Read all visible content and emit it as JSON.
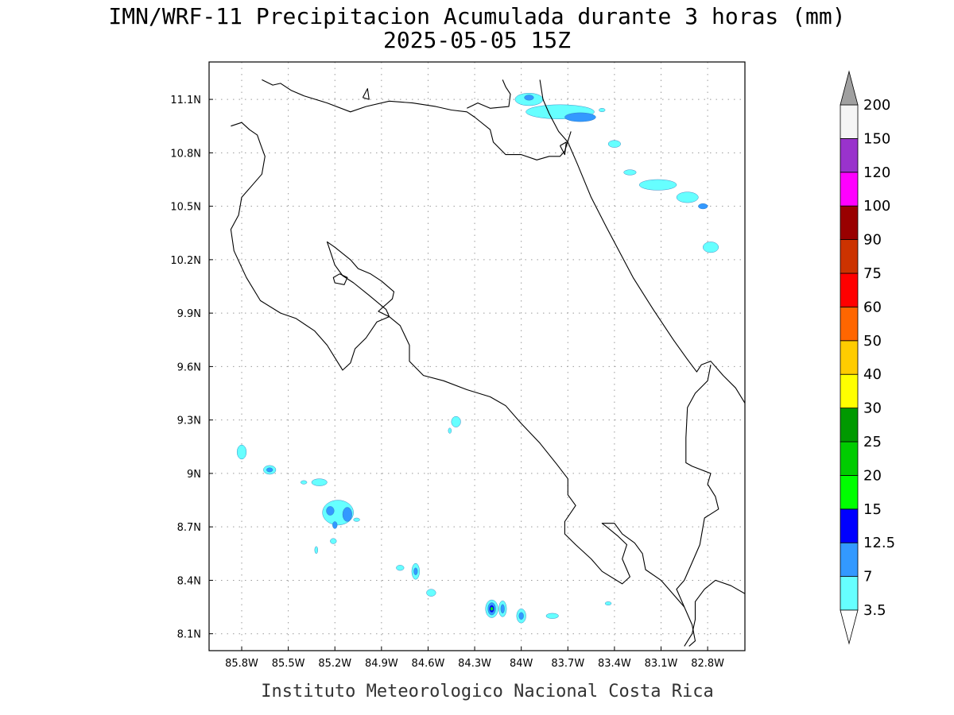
{
  "title_line1": "IMN/WRF-11 Precipitacion Acumulada durante 3 horas (mm)",
  "title_line2": "2025-05-05 15Z",
  "footer": "Instituto Meteorologico Nacional Costa Rica",
  "lon_ticks": [
    {
      "value": -85.8,
      "label": "85.8W"
    },
    {
      "value": -85.5,
      "label": "85.5W"
    },
    {
      "value": -85.2,
      "label": "85.2W"
    },
    {
      "value": -84.9,
      "label": "84.9W"
    },
    {
      "value": -84.6,
      "label": "84.6W"
    },
    {
      "value": -84.3,
      "label": "84.3W"
    },
    {
      "value": -84.0,
      "label": "84W"
    },
    {
      "value": -83.7,
      "label": "83.7W"
    },
    {
      "value": -83.4,
      "label": "83.4W"
    },
    {
      "value": -83.1,
      "label": "83.1W"
    },
    {
      "value": -82.8,
      "label": "82.8W"
    }
  ],
  "lat_ticks": [
    {
      "value": 11.1,
      "label": "11.1N"
    },
    {
      "value": 10.8,
      "label": "10.8N"
    },
    {
      "value": 10.5,
      "label": "10.5N"
    },
    {
      "value": 10.2,
      "label": "10.2N"
    },
    {
      "value": 9.9,
      "label": "9.9N"
    },
    {
      "value": 9.6,
      "label": "9.6N"
    },
    {
      "value": 9.3,
      "label": "9.3N"
    },
    {
      "value": 9.0,
      "label": "9N"
    },
    {
      "value": 8.7,
      "label": "8.7N"
    },
    {
      "value": 8.4,
      "label": "8.4N"
    },
    {
      "value": 8.1,
      "label": "8.1N"
    }
  ],
  "colorbar": {
    "max_arrow_color": "#a0a0a0",
    "min_arrow_color": "#ffffff",
    "bins": [
      {
        "color": "#66ffff"
      },
      {
        "color": "#3399ff"
      },
      {
        "color": "#0000ff"
      },
      {
        "color": "#00ff00"
      },
      {
        "color": "#00cc00"
      },
      {
        "color": "#009900"
      },
      {
        "color": "#ffff00"
      },
      {
        "color": "#ffcc00"
      },
      {
        "color": "#ff6600"
      },
      {
        "color": "#ff0000"
      },
      {
        "color": "#cc3300"
      },
      {
        "color": "#990000"
      },
      {
        "color": "#ff00ff"
      },
      {
        "color": "#9933cc"
      },
      {
        "color": "#f5f5f5"
      }
    ],
    "labels": [
      "3.5",
      "7",
      "12.5",
      "15",
      "20",
      "25",
      "30",
      "40",
      "50",
      "60",
      "75",
      "90",
      "100",
      "120",
      "150",
      "200"
    ]
  },
  "precip_cells": [
    {
      "lon": -83.75,
      "lat": 11.03,
      "mm": 3.5,
      "rlon": 0.22,
      "rlat": 0.04
    },
    {
      "lon": -83.95,
      "lat": 11.1,
      "mm": 3.5,
      "rlon": 0.09,
      "rlat": 0.035
    },
    {
      "lon": -83.62,
      "lat": 11.0,
      "mm": 7,
      "rlon": 0.1,
      "rlat": 0.025
    },
    {
      "lon": -83.95,
      "lat": 11.11,
      "mm": 7,
      "rlon": 0.03,
      "rlat": 0.015
    },
    {
      "lon": -83.4,
      "lat": 10.85,
      "mm": 3.5,
      "rlon": 0.04,
      "rlat": 0.02
    },
    {
      "lon": -83.3,
      "lat": 10.69,
      "mm": 3.5,
      "rlon": 0.04,
      "rlat": 0.015
    },
    {
      "lon": -83.12,
      "lat": 10.62,
      "mm": 3.5,
      "rlon": 0.12,
      "rlat": 0.03
    },
    {
      "lon": -82.93,
      "lat": 10.55,
      "mm": 3.5,
      "rlon": 0.07,
      "rlat": 0.03
    },
    {
      "lon": -82.83,
      "lat": 10.5,
      "mm": 7,
      "rlon": 0.03,
      "rlat": 0.015
    },
    {
      "lon": -82.78,
      "lat": 10.27,
      "mm": 3.5,
      "rlon": 0.05,
      "rlat": 0.03
    },
    {
      "lon": -84.42,
      "lat": 9.29,
      "mm": 3.5,
      "rlon": 0.03,
      "rlat": 0.03
    },
    {
      "lon": -85.8,
      "lat": 9.12,
      "mm": 3.5,
      "rlon": 0.03,
      "rlat": 0.04
    },
    {
      "lon": -85.62,
      "lat": 9.02,
      "mm": 3.5,
      "rlon": 0.04,
      "rlat": 0.025
    },
    {
      "lon": -85.62,
      "lat": 9.02,
      "mm": 7,
      "rlon": 0.02,
      "rlat": 0.012
    },
    {
      "lon": -85.3,
      "lat": 8.95,
      "mm": 3.5,
      "rlon": 0.05,
      "rlat": 0.02
    },
    {
      "lon": -85.18,
      "lat": 8.78,
      "mm": 3.5,
      "rlon": 0.1,
      "rlat": 0.07
    },
    {
      "lon": -85.12,
      "lat": 8.77,
      "mm": 7,
      "rlon": 0.03,
      "rlat": 0.04
    },
    {
      "lon": -85.23,
      "lat": 8.79,
      "mm": 7,
      "rlon": 0.025,
      "rlat": 0.025
    },
    {
      "lon": -85.2,
      "lat": 8.71,
      "mm": 7,
      "rlon": 0.015,
      "rlat": 0.02
    },
    {
      "lon": -84.68,
      "lat": 8.45,
      "mm": 3.5,
      "rlon": 0.025,
      "rlat": 0.045
    },
    {
      "lon": -84.68,
      "lat": 8.45,
      "mm": 7,
      "rlon": 0.012,
      "rlat": 0.02
    },
    {
      "lon": -84.58,
      "lat": 8.33,
      "mm": 3.5,
      "rlon": 0.03,
      "rlat": 0.02
    },
    {
      "lon": -84.78,
      "lat": 8.47,
      "mm": 3.5,
      "rlon": 0.025,
      "rlat": 0.015
    },
    {
      "lon": -84.19,
      "lat": 8.24,
      "mm": 3.5,
      "rlon": 0.04,
      "rlat": 0.05
    },
    {
      "lon": -84.19,
      "lat": 8.24,
      "mm": 7,
      "rlon": 0.025,
      "rlat": 0.035
    },
    {
      "lon": -84.19,
      "lat": 8.24,
      "mm": 12.5,
      "rlon": 0.015,
      "rlat": 0.02
    },
    {
      "lon": -84.19,
      "lat": 8.24,
      "mm": 15,
      "rlon": 0.008,
      "rlat": 0.01
    },
    {
      "lon": -84.12,
      "lat": 8.24,
      "mm": 3.5,
      "rlon": 0.025,
      "rlat": 0.045
    },
    {
      "lon": -84.12,
      "lat": 8.24,
      "mm": 7,
      "rlon": 0.012,
      "rlat": 0.025
    },
    {
      "lon": -84.0,
      "lat": 8.2,
      "mm": 3.5,
      "rlon": 0.03,
      "rlat": 0.04
    },
    {
      "lon": -84.0,
      "lat": 8.2,
      "mm": 7,
      "rlon": 0.015,
      "rlat": 0.02
    },
    {
      "lon": -83.8,
      "lat": 8.2,
      "mm": 3.5,
      "rlon": 0.04,
      "rlat": 0.015
    },
    {
      "lon": -85.4,
      "lat": 8.95,
      "mm": 3.5,
      "rlon": 0.02,
      "rlat": 0.01
    },
    {
      "lon": -85.06,
      "lat": 8.74,
      "mm": 3.5,
      "rlon": 0.02,
      "rlat": 0.01
    },
    {
      "lon": -85.21,
      "lat": 8.62,
      "mm": 3.5,
      "rlon": 0.02,
      "rlat": 0.015
    },
    {
      "lon": -85.32,
      "lat": 8.57,
      "mm": 3.5,
      "rlon": 0.01,
      "rlat": 0.02
    },
    {
      "lon": -84.46,
      "lat": 9.24,
      "mm": 3.5,
      "rlon": 0.01,
      "rlat": 0.015
    },
    {
      "lon": -83.44,
      "lat": 8.27,
      "mm": 3.5,
      "rlon": 0.02,
      "rlat": 0.01
    },
    {
      "lon": -83.48,
      "lat": 11.04,
      "mm": 3.5,
      "rlon": 0.02,
      "rlat": 0.01
    }
  ],
  "coastlines": [
    [
      [
        -85.67,
        11.21
      ],
      [
        -85.6,
        11.18
      ],
      [
        -85.55,
        11.19
      ],
      [
        -85.48,
        11.15
      ],
      [
        -85.4,
        11.12
      ],
      [
        -85.25,
        11.08
      ],
      [
        -85.1,
        11.03
      ],
      [
        -85.0,
        11.06
      ],
      [
        -84.85,
        11.09
      ],
      [
        -84.7,
        11.08
      ],
      [
        -84.55,
        11.06
      ],
      [
        -84.45,
        11.04
      ],
      [
        -84.35,
        11.03
      ],
      [
        -84.3,
        11.0
      ],
      [
        -84.2,
        10.93
      ],
      [
        -84.18,
        10.86
      ],
      [
        -84.1,
        10.79
      ],
      [
        -84.0,
        10.79
      ],
      [
        -83.9,
        10.76
      ],
      [
        -83.82,
        10.78
      ],
      [
        -83.75,
        10.78
      ],
      [
        -83.72,
        10.81
      ],
      [
        -83.68,
        10.92
      ]
    ],
    [
      [
        -84.12,
        11.21
      ],
      [
        -84.1,
        11.17
      ],
      [
        -84.07,
        11.13
      ],
      [
        -84.08,
        11.06
      ],
      [
        -84.2,
        11.05
      ],
      [
        -84.28,
        11.08
      ],
      [
        -84.35,
        11.05
      ]
    ],
    [
      [
        -83.88,
        11.21
      ],
      [
        -83.86,
        11.1
      ],
      [
        -83.82,
        11.02
      ],
      [
        -83.76,
        10.92
      ],
      [
        -83.7,
        10.86
      ],
      [
        -83.64,
        10.74
      ],
      [
        -83.55,
        10.55
      ],
      [
        -83.45,
        10.38
      ],
      [
        -83.28,
        10.1
      ],
      [
        -83.15,
        9.92
      ],
      [
        -83.02,
        9.75
      ],
      [
        -82.93,
        9.64
      ],
      [
        -82.87,
        9.57
      ],
      [
        -82.84,
        9.61
      ],
      [
        -82.78,
        9.63
      ],
      [
        -82.7,
        9.55
      ],
      [
        -82.62,
        9.48
      ],
      [
        -82.55,
        9.38
      ]
    ],
    [
      [
        -82.78,
        9.61
      ],
      [
        -82.8,
        9.52
      ],
      [
        -82.88,
        9.45
      ],
      [
        -82.93,
        9.37
      ],
      [
        -82.94,
        9.2
      ],
      [
        -82.94,
        9.06
      ],
      [
        -82.9,
        9.04
      ],
      [
        -82.78,
        9.0
      ],
      [
        -82.8,
        8.94
      ],
      [
        -82.75,
        8.87
      ],
      [
        -82.73,
        8.8
      ],
      [
        -82.82,
        8.75
      ],
      [
        -82.85,
        8.6
      ],
      [
        -82.9,
        8.5
      ],
      [
        -82.95,
        8.4
      ],
      [
        -83.0,
        8.35
      ],
      [
        -82.95,
        8.25
      ],
      [
        -82.9,
        8.15
      ],
      [
        -82.88,
        8.06
      ],
      [
        -82.92,
        8.03
      ]
    ],
    [
      [
        -82.95,
        8.03
      ],
      [
        -82.9,
        8.1
      ],
      [
        -82.88,
        8.18
      ],
      [
        -82.88,
        8.28
      ],
      [
        -82.82,
        8.35
      ],
      [
        -82.75,
        8.4
      ],
      [
        -82.65,
        8.37
      ],
      [
        -82.55,
        8.32
      ]
    ],
    [
      [
        -85.87,
        10.95
      ],
      [
        -85.8,
        10.97
      ],
      [
        -85.75,
        10.93
      ],
      [
        -85.7,
        10.9
      ],
      [
        -85.68,
        10.85
      ],
      [
        -85.65,
        10.78
      ],
      [
        -85.67,
        10.68
      ],
      [
        -85.73,
        10.62
      ],
      [
        -85.8,
        10.55
      ],
      [
        -85.82,
        10.45
      ],
      [
        -85.87,
        10.37
      ],
      [
        -85.85,
        10.25
      ],
      [
        -85.77,
        10.1
      ],
      [
        -85.68,
        9.97
      ],
      [
        -85.55,
        9.9
      ],
      [
        -85.45,
        9.87
      ],
      [
        -85.33,
        9.8
      ],
      [
        -85.25,
        9.72
      ],
      [
        -85.2,
        9.65
      ],
      [
        -85.15,
        9.58
      ],
      [
        -85.1,
        9.62
      ],
      [
        -85.07,
        9.7
      ],
      [
        -85.0,
        9.76
      ],
      [
        -84.93,
        9.85
      ],
      [
        -84.85,
        9.88
      ],
      [
        -84.92,
        9.91
      ],
      [
        -84.83,
        9.98
      ],
      [
        -84.82,
        10.02
      ],
      [
        -84.9,
        10.08
      ],
      [
        -84.97,
        10.12
      ],
      [
        -85.05,
        10.15
      ],
      [
        -85.1,
        10.2
      ],
      [
        -85.2,
        10.27
      ],
      [
        -85.25,
        10.3
      ],
      [
        -85.2,
        10.17
      ],
      [
        -85.15,
        10.11
      ],
      [
        -85.08,
        10.07
      ],
      [
        -84.98,
        10.0
      ],
      [
        -84.87,
        9.92
      ],
      [
        -84.85,
        9.88
      ],
      [
        -84.78,
        9.83
      ],
      [
        -84.72,
        9.72
      ],
      [
        -84.72,
        9.63
      ],
      [
        -84.63,
        9.55
      ],
      [
        -84.5,
        9.52
      ],
      [
        -84.35,
        9.47
      ],
      [
        -84.2,
        9.43
      ],
      [
        -84.1,
        9.38
      ],
      [
        -84.0,
        9.28
      ],
      [
        -83.88,
        9.17
      ],
      [
        -83.77,
        9.05
      ],
      [
        -83.7,
        8.97
      ],
      [
        -83.7,
        8.88
      ],
      [
        -83.65,
        8.82
      ],
      [
        -83.72,
        8.73
      ],
      [
        -83.72,
        8.66
      ],
      [
        -83.65,
        8.6
      ],
      [
        -83.55,
        8.52
      ],
      [
        -83.48,
        8.45
      ],
      [
        -83.35,
        8.38
      ],
      [
        -83.3,
        8.42
      ],
      [
        -83.35,
        8.52
      ],
      [
        -83.32,
        8.6
      ],
      [
        -83.38,
        8.65
      ],
      [
        -83.45,
        8.7
      ],
      [
        -83.48,
        8.72
      ],
      [
        -83.4,
        8.72
      ],
      [
        -83.35,
        8.66
      ],
      [
        -83.27,
        8.61
      ],
      [
        -83.22,
        8.55
      ],
      [
        -83.2,
        8.46
      ],
      [
        -83.1,
        8.4
      ],
      [
        -83.03,
        8.33
      ],
      [
        -82.95,
        8.25
      ]
    ],
    [
      [
        -85.2,
        10.07
      ],
      [
        -85.14,
        10.06
      ],
      [
        -85.12,
        10.1
      ],
      [
        -85.17,
        10.12
      ],
      [
        -85.21,
        10.1
      ],
      [
        -85.2,
        10.07
      ]
    ],
    [
      [
        -85.02,
        11.11
      ],
      [
        -84.98,
        11.1
      ],
      [
        -84.99,
        11.16
      ],
      [
        -85.02,
        11.11
      ]
    ],
    [
      [
        -83.75,
        10.84
      ],
      [
        -83.72,
        10.79
      ],
      [
        -83.71,
        10.86
      ],
      [
        -83.75,
        10.84
      ]
    ]
  ]
}
